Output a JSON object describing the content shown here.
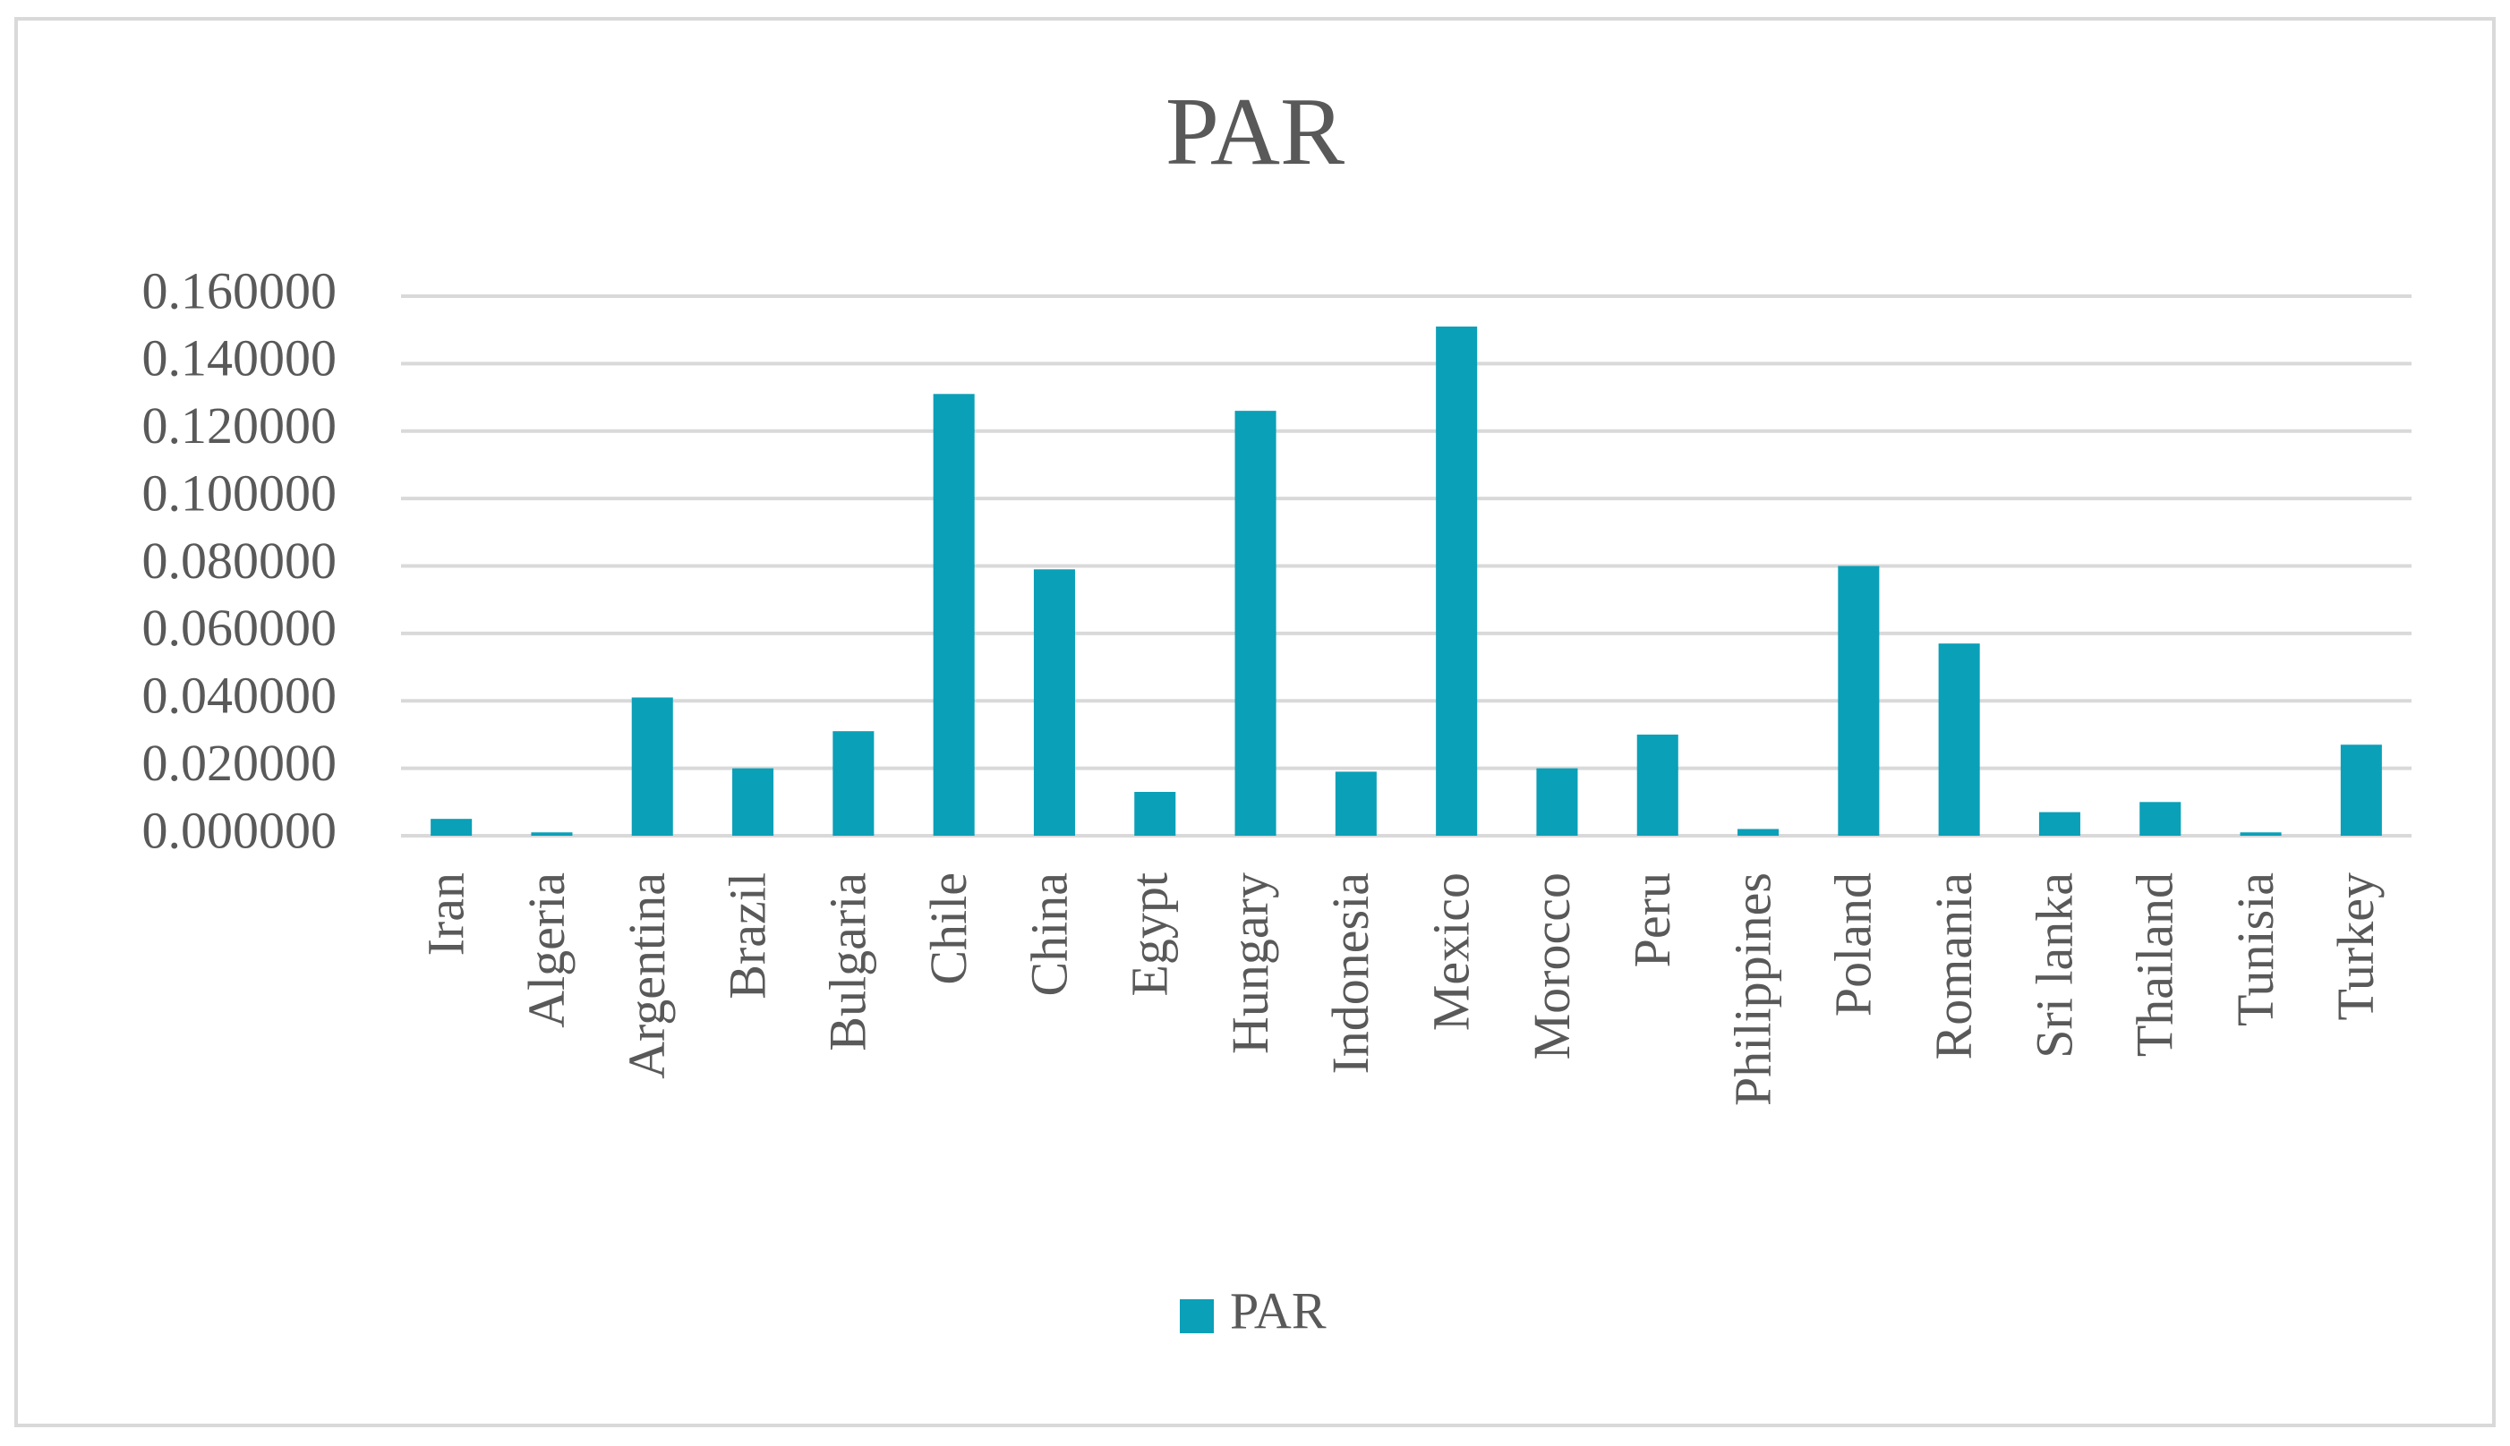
{
  "chart_data": {
    "type": "bar",
    "title": "PAR",
    "categories": [
      "Iran",
      "Algeria",
      "Argentina",
      "Brazil",
      "Bulgaria",
      "Chile",
      "China",
      "Egypt",
      "Hungary",
      "Indonesia",
      "Mexico",
      "Morocco",
      "Peru",
      "Philippines",
      "Poland",
      "Romania",
      "Sri lanka",
      "Thailand",
      "Tunisia",
      "Turkey"
    ],
    "series": [
      {
        "name": "PAR",
        "color": "#0aa0b8",
        "values": [
          0.005,
          0.001,
          0.041,
          0.02,
          0.031,
          0.131,
          0.079,
          0.013,
          0.126,
          0.019,
          0.151,
          0.02,
          0.03,
          0.002,
          0.08,
          0.057,
          0.007,
          0.01,
          0.001,
          0.027
        ]
      }
    ],
    "ylim": [
      0,
      0.16
    ],
    "yticks": [
      {
        "value": 0,
        "label": "0.000000"
      },
      {
        "value": 0.02,
        "label": "0.020000"
      },
      {
        "value": 0.04,
        "label": "0.040000"
      },
      {
        "value": 0.06,
        "label": "0.060000"
      },
      {
        "value": 0.08,
        "label": "0.080000"
      },
      {
        "value": 0.1,
        "label": "0.100000"
      },
      {
        "value": 0.12,
        "label": "0.120000"
      },
      {
        "value": 0.14,
        "label": "0.140000"
      },
      {
        "value": 0.16,
        "label": "0.160000"
      }
    ],
    "grid": true,
    "legend": "bottom"
  }
}
